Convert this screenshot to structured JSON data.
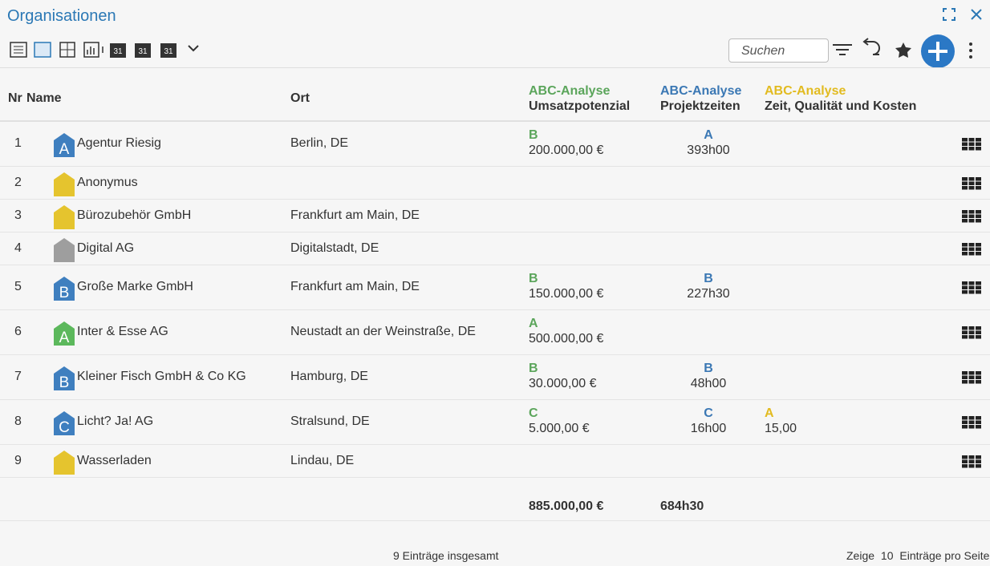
{
  "header": {
    "title": "Organisationen",
    "search_placeholder": "Suchen"
  },
  "toolbar": {
    "calendar_labels": [
      "31",
      "31",
      "31"
    ]
  },
  "table": {
    "columns": {
      "nr": "Nr",
      "name": "Name",
      "ort": "Ort",
      "abc": [
        {
          "title": "ABC-Analyse",
          "subtitle": "Umsatzpotenzial",
          "color": "#5ba55b"
        },
        {
          "title": "ABC-Analyse",
          "subtitle": "Projektzeiten",
          "color": "#3b78b4"
        },
        {
          "title": "ABC-Analyse",
          "subtitle": "Zeit, Qualität und Kosten",
          "color": "#e2bb20"
        }
      ]
    },
    "rows": [
      {
        "nr": 1,
        "badge": "A",
        "badge_color": "#3f7fbf",
        "name": "Agentur Riesig",
        "ort": "Berlin, DE",
        "abc": [
          {
            "class": "B",
            "value": "200.000,00 €"
          },
          {
            "class": "A",
            "value": "393h00"
          }
        ]
      },
      {
        "nr": 2,
        "badge_color": "#e5c42e",
        "name": "Anonymus"
      },
      {
        "nr": 3,
        "badge_color": "#e5c42e",
        "name": "Bürozubehör GmbH",
        "ort": "Frankfurt am Main, DE"
      },
      {
        "nr": 4,
        "badge_color": "#9e9e9e",
        "name": "Digital AG",
        "ort": "Digitalstadt, DE"
      },
      {
        "nr": 5,
        "badge": "B",
        "badge_color": "#3f7fbf",
        "name": "Große Marke GmbH",
        "ort": "Frankfurt am Main, DE",
        "abc": [
          {
            "class": "B",
            "value": "150.000,00 €"
          },
          {
            "class": "B",
            "value": "227h30"
          }
        ]
      },
      {
        "nr": 6,
        "badge": "A",
        "badge_color": "#5cb85c",
        "name": "Inter & Esse AG",
        "ort": "Neustadt an der Weinstraße, DE",
        "abc": [
          {
            "class": "A",
            "value": "500.000,00 €"
          }
        ]
      },
      {
        "nr": 7,
        "badge": "B",
        "badge_color": "#3f7fbf",
        "name": "Kleiner Fisch GmbH & Co KG",
        "ort": "Hamburg, DE",
        "abc": [
          {
            "class": "B",
            "value": "30.000,00 €"
          },
          {
            "class": "B",
            "value": "48h00"
          }
        ]
      },
      {
        "nr": 8,
        "badge": "C",
        "badge_color": "#3f7fbf",
        "name": "Licht? Ja! AG",
        "ort": "Stralsund, DE",
        "abc": [
          {
            "class": "C",
            "value": "5.000,00 €"
          },
          {
            "class": "C",
            "value": "16h00"
          },
          {
            "class": "A",
            "value": "15,00"
          }
        ]
      },
      {
        "nr": 9,
        "badge_color": "#e5c42e",
        "name": "Wasserladen",
        "ort": "Lindau, DE"
      }
    ],
    "totals": [
      "885.000,00 €",
      "684h30"
    ]
  },
  "footer": {
    "total": "9 Einträge insgesamt",
    "show": "Zeige",
    "per_page": "10",
    "per_page_suffix": "Einträge pro Seite"
  }
}
